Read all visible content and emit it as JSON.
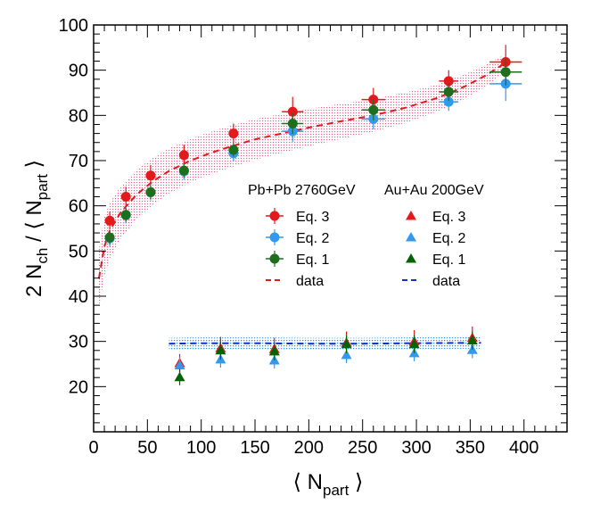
{
  "chart_data": {
    "type": "scatter",
    "xlabel": "⟨ N_part ⟩",
    "ylabel": "2 N_ch / ⟨ N_part ⟩",
    "xlim": [
      0,
      440
    ],
    "ylim": [
      10,
      100
    ],
    "xticks": [
      0,
      50,
      100,
      150,
      200,
      250,
      300,
      350,
      400
    ],
    "yticks": [
      20,
      30,
      40,
      50,
      60,
      70,
      80,
      90,
      100
    ],
    "legend": {
      "placement": "center-right",
      "group_titles": [
        "Pb+Pb 2760GeV",
        "Au+Au 200GeV"
      ],
      "entries_left": [
        "Eq. 3",
        "Eq. 2",
        "Eq. 1",
        "data"
      ],
      "entries_right": [
        "Eq. 3",
        "Eq. 2",
        "Eq. 1",
        "data"
      ]
    },
    "series": [
      {
        "name": "Pb+Pb 2760GeV Eq. 3",
        "color": "#e31a1c",
        "marker": "circle",
        "x": [
          15,
          30,
          53,
          84,
          130,
          185,
          260,
          330,
          383
        ],
        "y": [
          56.7,
          62.0,
          66.7,
          71.2,
          76.0,
          80.8,
          83.5,
          87.6,
          91.8
        ],
        "yerr": [
          2.0,
          2.2,
          2.3,
          2.3,
          2.2,
          3.3,
          2.6,
          2.4,
          3.8
        ],
        "xerr": [
          0,
          0,
          0,
          0,
          0,
          10,
          11,
          9,
          15
        ]
      },
      {
        "name": "Pb+Pb 2760GeV Eq. 2",
        "color": "#3399ee",
        "marker": "circle",
        "x": [
          15,
          30,
          53,
          84,
          130,
          185,
          260,
          330,
          383
        ],
        "y": [
          52.8,
          57.9,
          63.0,
          67.6,
          71.6,
          76.5,
          79.2,
          83.0,
          87.0
        ],
        "yerr": [
          1.8,
          1.8,
          1.8,
          1.8,
          1.8,
          2.3,
          2.3,
          2.0,
          3.8
        ],
        "xerr": [
          0,
          0,
          0,
          0,
          0,
          10,
          11,
          9,
          15
        ]
      },
      {
        "name": "Pb+Pb 2760GeV Eq. 1",
        "color": "#1e6e1e",
        "marker": "circle",
        "x": [
          15,
          30,
          53,
          84,
          130,
          185,
          260,
          330,
          383
        ],
        "y": [
          53.0,
          58.0,
          63.0,
          67.8,
          72.4,
          78.2,
          81.2,
          85.2,
          89.6
        ],
        "yerr": [
          1.5,
          1.5,
          1.5,
          1.5,
          1.5,
          2.3,
          2.3,
          2.0,
          3.0
        ],
        "xerr": [
          0,
          0,
          0,
          0,
          0,
          10,
          11,
          9,
          15
        ]
      },
      {
        "name": "Au+Au 200GeV Eq. 3",
        "color": "#e31a1c",
        "marker": "triangle",
        "x": [
          80,
          118,
          168,
          235,
          298,
          352
        ],
        "y": [
          25.2,
          28.5,
          28.3,
          29.7,
          30.0,
          30.8
        ],
        "yerr": [
          2.0,
          2.5,
          2.5,
          2.5,
          2.5,
          2.5
        ]
      },
      {
        "name": "Au+Au 200GeV Eq. 2",
        "color": "#3399ee",
        "marker": "triangle",
        "x": [
          80,
          118,
          168,
          235,
          298,
          352
        ],
        "y": [
          24.7,
          26.0,
          25.8,
          27.0,
          27.4,
          28.1
        ],
        "yerr": [
          1.8,
          1.8,
          1.8,
          1.8,
          1.8,
          1.8
        ]
      },
      {
        "name": "Au+Au 200GeV Eq. 1",
        "color": "#006400",
        "marker": "triangle",
        "x": [
          80,
          118,
          168,
          235,
          298,
          352
        ],
        "y": [
          22.1,
          28.0,
          27.8,
          29.4,
          29.4,
          30.2
        ],
        "yerr": [
          1.8,
          2.0,
          2.0,
          2.0,
          2.0,
          2.0
        ]
      }
    ],
    "curves": [
      {
        "name": "Pb+Pb 2760GeV data",
        "color": "#e31a1c",
        "style": "dashed",
        "band_color": "#f06090",
        "x": [
          5,
          10,
          15,
          25,
          40,
          55,
          70,
          90,
          110,
          130,
          150,
          175,
          200,
          230,
          260,
          290,
          320,
          345,
          365,
          380
        ],
        "y": [
          44.0,
          51.0,
          54.5,
          58.5,
          62.5,
          65.4,
          67.7,
          70.0,
          71.8,
          73.3,
          74.7,
          76.0,
          77.3,
          78.7,
          80.0,
          81.7,
          83.9,
          86.4,
          88.9,
          91.2
        ],
        "band_half_width": [
          6.5,
          6.5,
          6.2,
          5.8,
          5.5,
          5.2,
          5.0,
          4.8,
          4.7,
          4.6,
          4.5,
          4.3,
          4.1,
          3.9,
          3.6,
          3.4,
          3.0,
          2.7,
          2.4,
          2.0
        ]
      },
      {
        "name": "Au+Au 200GeV data",
        "color": "#1530c8",
        "style": "dashed",
        "band_color": "#55aaff",
        "x": [
          70,
          100,
          150,
          200,
          250,
          300,
          360
        ],
        "y": [
          29.5,
          29.6,
          29.6,
          29.5,
          29.5,
          29.6,
          29.7
        ],
        "band_half_width": [
          1.3,
          1.3,
          1.3,
          1.3,
          1.3,
          1.3,
          1.3
        ]
      }
    ]
  }
}
